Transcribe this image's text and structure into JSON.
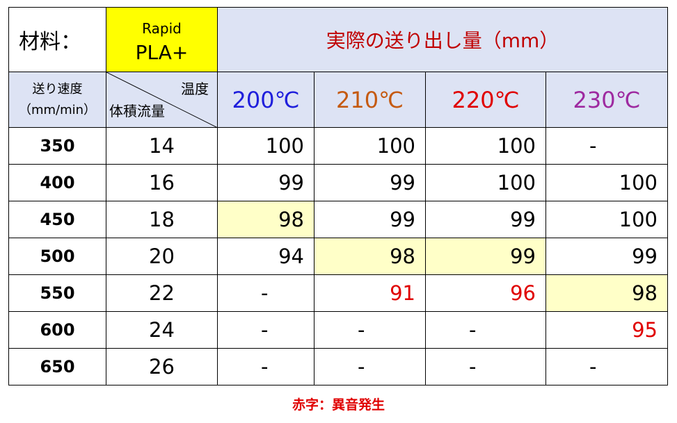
{
  "header": {
    "material_label": "材料：",
    "brand_line1": "Rapid",
    "brand_line2": "PLA+",
    "title": "実際の送り出し量（mm）"
  },
  "subheader": {
    "speed_line1": "送り速度",
    "speed_line2": "（mm/min）",
    "diag_top": "温度",
    "diag_bottom": "体積流量"
  },
  "temps": [
    {
      "label": "200℃",
      "color": "#1f1fdc"
    },
    {
      "label": "210℃",
      "color": "#c55a11"
    },
    {
      "label": "220℃",
      "color": "#e00000"
    },
    {
      "label": "230℃",
      "color": "#9e2aa0"
    }
  ],
  "rows": [
    {
      "speed": "350",
      "flow": "14",
      "cells": [
        {
          "v": "100"
        },
        {
          "v": "100"
        },
        {
          "v": "100"
        },
        {
          "v": "-"
        }
      ]
    },
    {
      "speed": "400",
      "flow": "16",
      "cells": [
        {
          "v": "99"
        },
        {
          "v": "99"
        },
        {
          "v": "100"
        },
        {
          "v": "100"
        }
      ]
    },
    {
      "speed": "450",
      "flow": "18",
      "cells": [
        {
          "v": "98",
          "hl": true
        },
        {
          "v": "99"
        },
        {
          "v": "99"
        },
        {
          "v": "100"
        }
      ]
    },
    {
      "speed": "500",
      "flow": "20",
      "cells": [
        {
          "v": "94"
        },
        {
          "v": "98",
          "hl": true
        },
        {
          "v": "99",
          "hl": true
        },
        {
          "v": "99"
        }
      ]
    },
    {
      "speed": "550",
      "flow": "22",
      "cells": [
        {
          "v": "-"
        },
        {
          "v": "91",
          "red": true
        },
        {
          "v": "96",
          "red": true
        },
        {
          "v": "98",
          "hl": true
        }
      ]
    },
    {
      "speed": "600",
      "flow": "24",
      "cells": [
        {
          "v": "-"
        },
        {
          "v": "-"
        },
        {
          "v": "-"
        },
        {
          "v": "95",
          "red": true
        }
      ]
    },
    {
      "speed": "650",
      "flow": "26",
      "cells": [
        {
          "v": "-"
        },
        {
          "v": "-"
        },
        {
          "v": "-"
        },
        {
          "v": "-"
        }
      ]
    }
  ],
  "colors": {
    "header_bg": "#dde3f4",
    "highlight": "#ffffc8",
    "brand_bg": "#ffff00",
    "noise_red": "#e00000",
    "title_red": "#c00000"
  },
  "note": "赤字：異音発生"
}
